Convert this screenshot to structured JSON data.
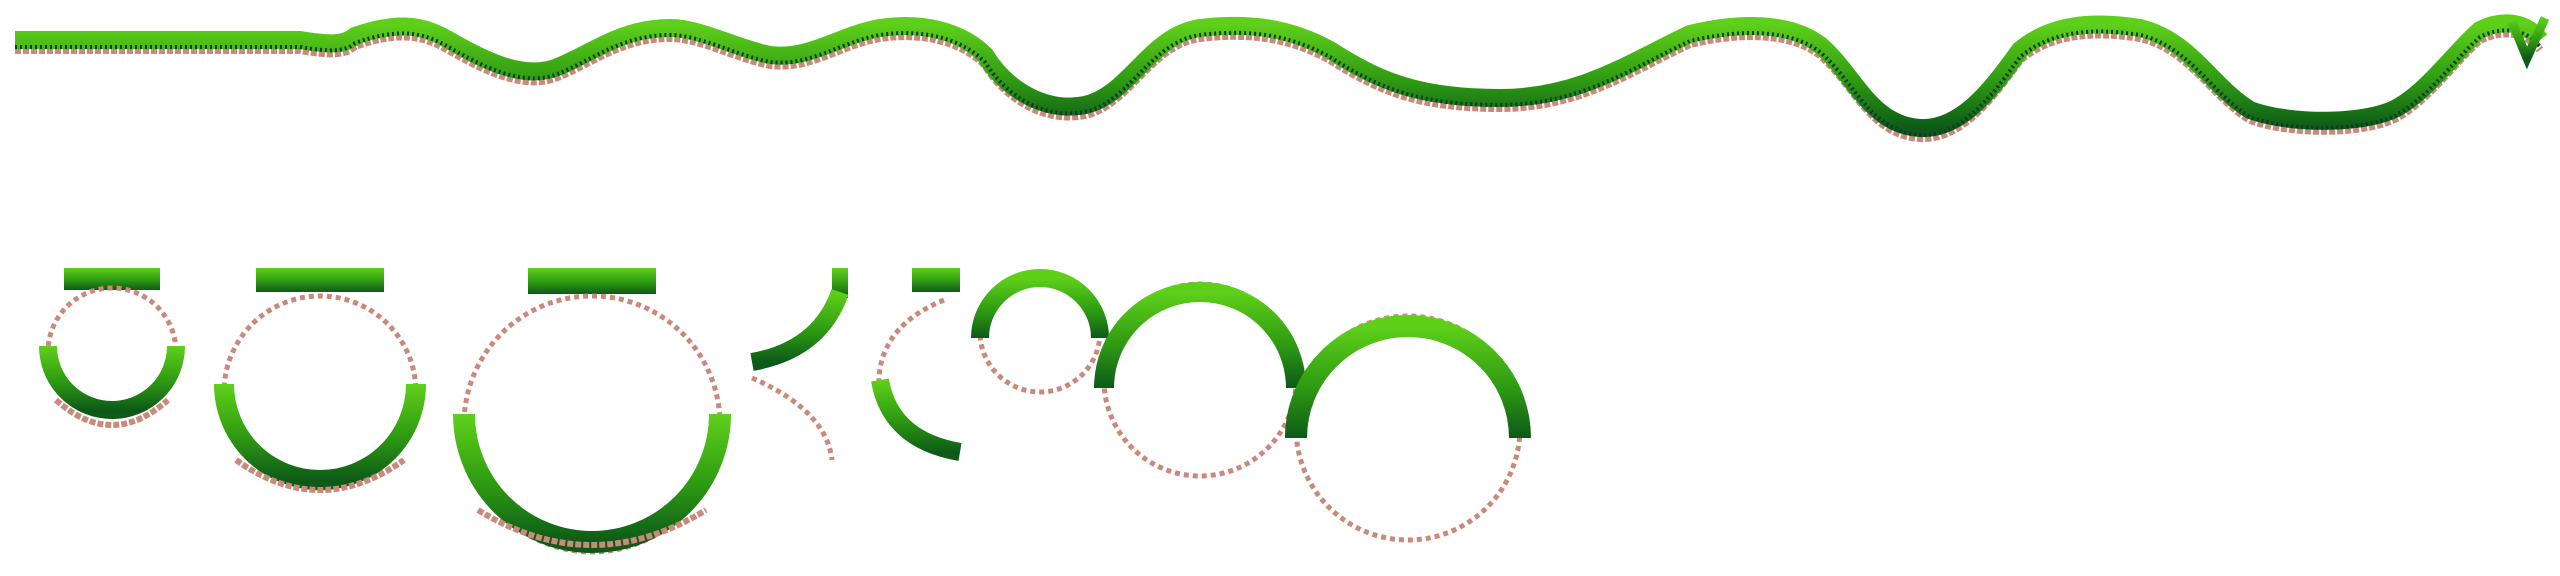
{
  "sheet": {
    "palette": {
      "grass_light": "#5fd01a",
      "grass_mid": "#2e9a12",
      "grass_dark": "#0d5a18",
      "grass_shadow": "#0a3a2a",
      "brick": "#c98a7c",
      "brick_light": "#e8b8aa",
      "brick_dark": "#8a4a44"
    },
    "pieces": [
      {
        "id": "wavy-ground-strip",
        "kind": "ground-tile"
      },
      {
        "id": "loop-small-closed",
        "kind": "loop-tile"
      },
      {
        "id": "loop-medium-closed",
        "kind": "loop-tile"
      },
      {
        "id": "loop-large-closed",
        "kind": "loop-tile"
      },
      {
        "id": "loop-quarter-right",
        "kind": "loop-tile"
      },
      {
        "id": "loop-quarter-left",
        "kind": "loop-tile"
      },
      {
        "id": "loop-small-open",
        "kind": "loop-tile"
      },
      {
        "id": "loop-medium-open",
        "kind": "loop-tile"
      },
      {
        "id": "loop-large-open",
        "kind": "loop-tile"
      }
    ]
  }
}
